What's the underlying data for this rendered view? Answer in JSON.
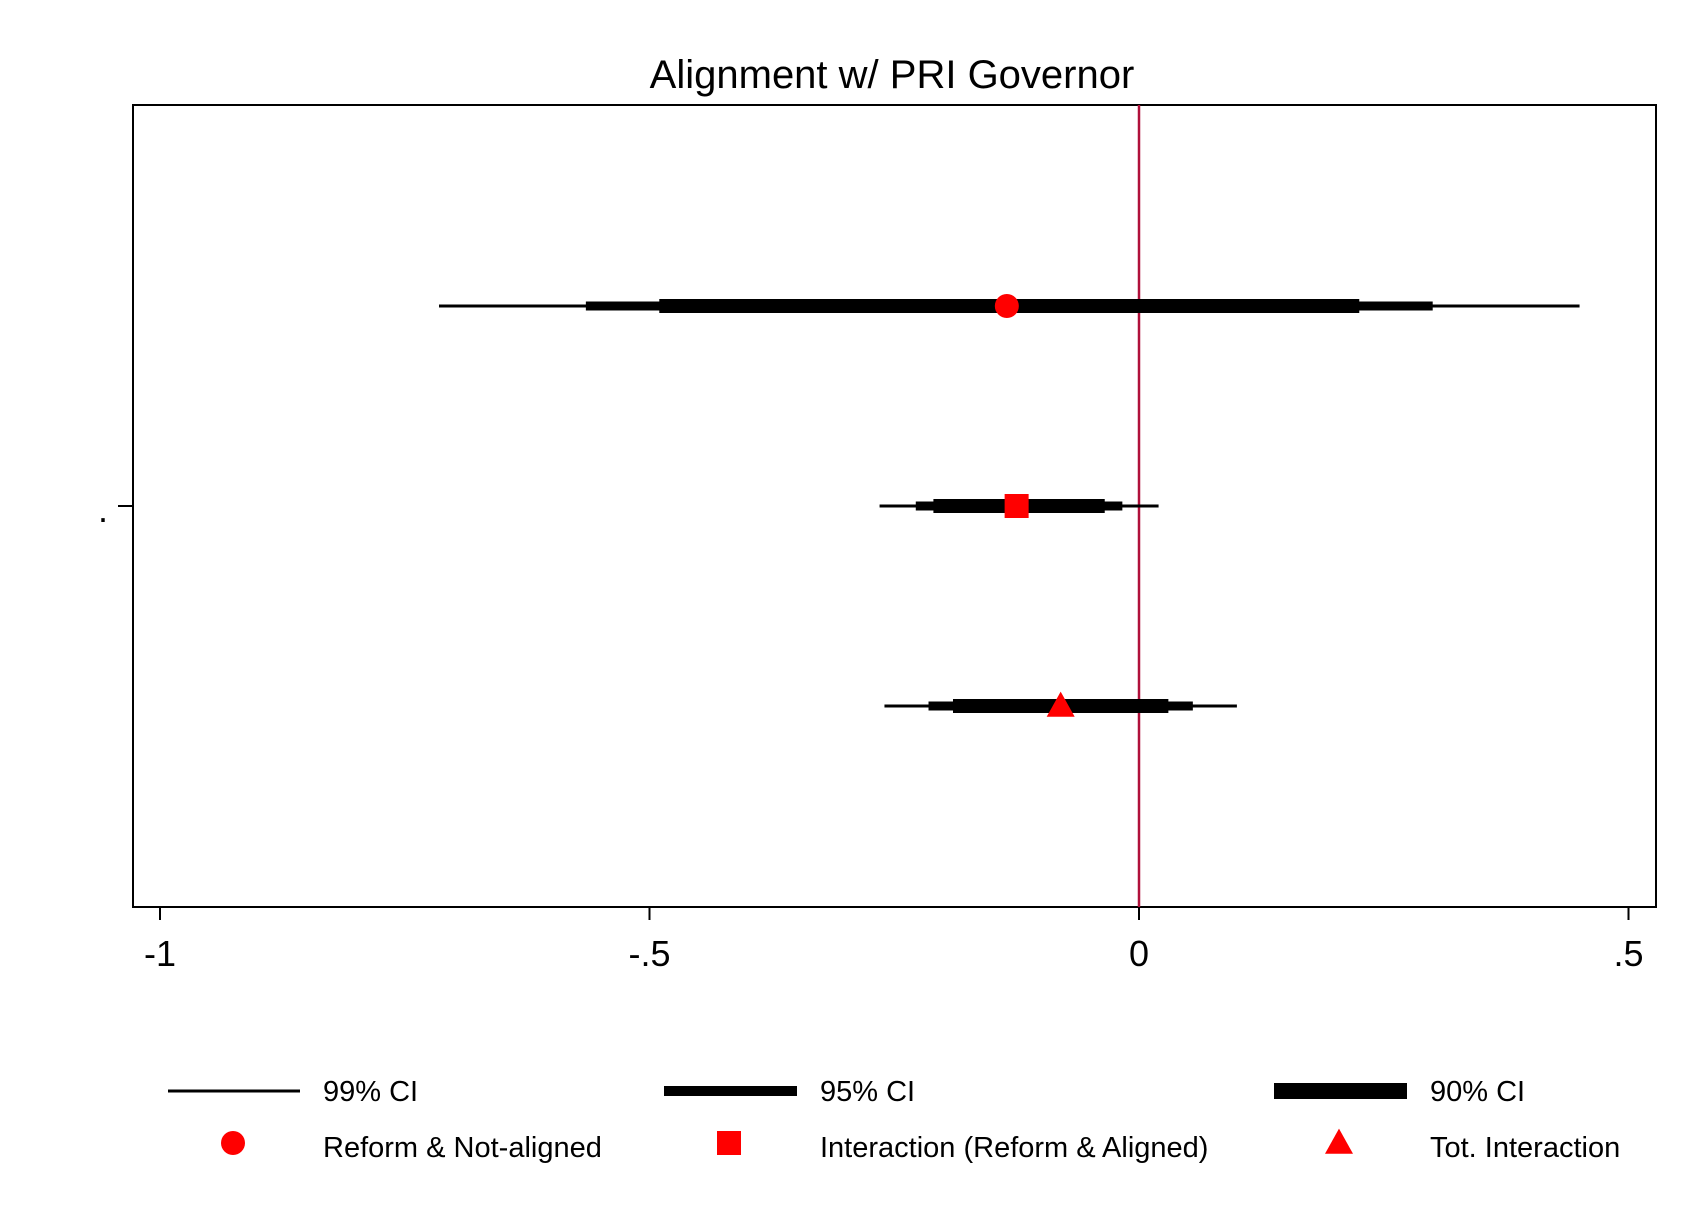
{
  "chart_data": {
    "type": "forest",
    "title": "Alignment w/ PRI Governor",
    "xlabel": "",
    "ylabel": "",
    "xlim": [
      -1.06,
      0.53
    ],
    "x_ticks": [
      -1,
      -0.5,
      0,
      0.5
    ],
    "x_tick_labels": [
      "-1",
      "-.5",
      "0",
      ".5"
    ],
    "y_tick_labels": [
      "."
    ],
    "reference_line": {
      "x": 0,
      "color": "#b0103a"
    },
    "point_color": "#ff0000",
    "interval_color": "#000000",
    "grid": false,
    "legend_position": "bottom",
    "ci_legend": [
      {
        "label": "99% CI",
        "level": "99"
      },
      {
        "label": "95% CI",
        "level": "95"
      },
      {
        "label": "90% CI",
        "level": "90"
      }
    ],
    "series": [
      {
        "name": "Reform & Not-aligned",
        "marker": "circle",
        "estimate": -0.135,
        "ci90": [
          -0.49,
          0.225
        ],
        "ci95": [
          -0.565,
          0.3
        ],
        "ci99": [
          -0.715,
          0.45
        ]
      },
      {
        "name": "Interaction (Reform & Aligned)",
        "marker": "square",
        "estimate": -0.125,
        "ci90": [
          -0.21,
          -0.035
        ],
        "ci95": [
          -0.228,
          -0.017
        ],
        "ci99": [
          -0.265,
          0.02
        ]
      },
      {
        "name": "Tot. Interaction",
        "marker": "triangle",
        "estimate": -0.08,
        "ci90": [
          -0.19,
          0.03
        ],
        "ci95": [
          -0.215,
          0.055
        ],
        "ci99": [
          -0.26,
          0.1
        ]
      }
    ]
  }
}
